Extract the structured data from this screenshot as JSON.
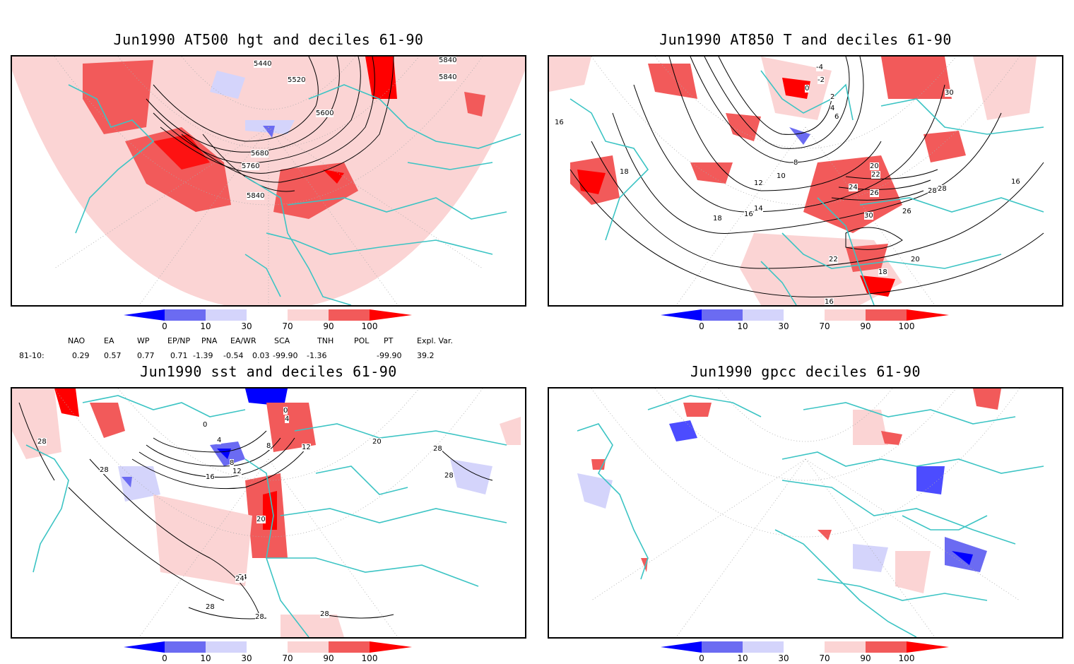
{
  "colors": {
    "map_outline": "#3cc4c4",
    "red_dark": "#ff0000",
    "red_mid": "#f25a5a",
    "red_light": "#fbd4d4",
    "blue_dark": "#0000ff",
    "blue_mid": "#6b6bf2",
    "blue_light": "#d4d4fb"
  },
  "panels": [
    {
      "title": "Jun1990 AT500 hgt and deciles 61-90",
      "contour_labels": [
        "5440",
        "5520",
        "5600",
        "5680",
        "5760",
        "5840",
        "5840",
        "5840"
      ]
    },
    {
      "title": "Jun1990 AT850 T and deciles 61-90",
      "contour_labels": [
        "-4",
        "-2",
        "0",
        "2",
        "4",
        "6",
        "8",
        "10",
        "12",
        "14",
        "16",
        "18",
        "20",
        "22",
        "24",
        "26",
        "28",
        "30",
        "16",
        "18",
        "20",
        "22",
        "18",
        "16",
        "30",
        "28",
        "26",
        "16"
      ]
    },
    {
      "title": "Jun1990 sst and deciles 61-90",
      "contour_labels": [
        "28",
        "28",
        "24",
        "20",
        "16",
        "12",
        "8",
        "4",
        "0",
        "0",
        "4",
        "8",
        "12",
        "20",
        "28",
        "28",
        "24",
        "28",
        "28",
        "28"
      ]
    },
    {
      "title": "Jun1990 gpcc deciles 61-90",
      "contour_labels": []
    }
  ],
  "colorbar": {
    "ticks": [
      "0",
      "10",
      "30",
      "70",
      "90",
      "100"
    ]
  },
  "indices": {
    "names": [
      "NAO",
      "EA",
      "WP",
      "EP/NP",
      "PNA",
      "EA/WR",
      "SCA",
      "TNH",
      "POL",
      "PT",
      "Expl. Var."
    ],
    "row_label": "81-10:",
    "values": [
      "0.29",
      "0.57",
      "0.77",
      "0.71",
      "-1.39",
      "-0.54",
      "0.03",
      "-99.90",
      "-1.36",
      "-99.90",
      "39.2"
    ]
  }
}
